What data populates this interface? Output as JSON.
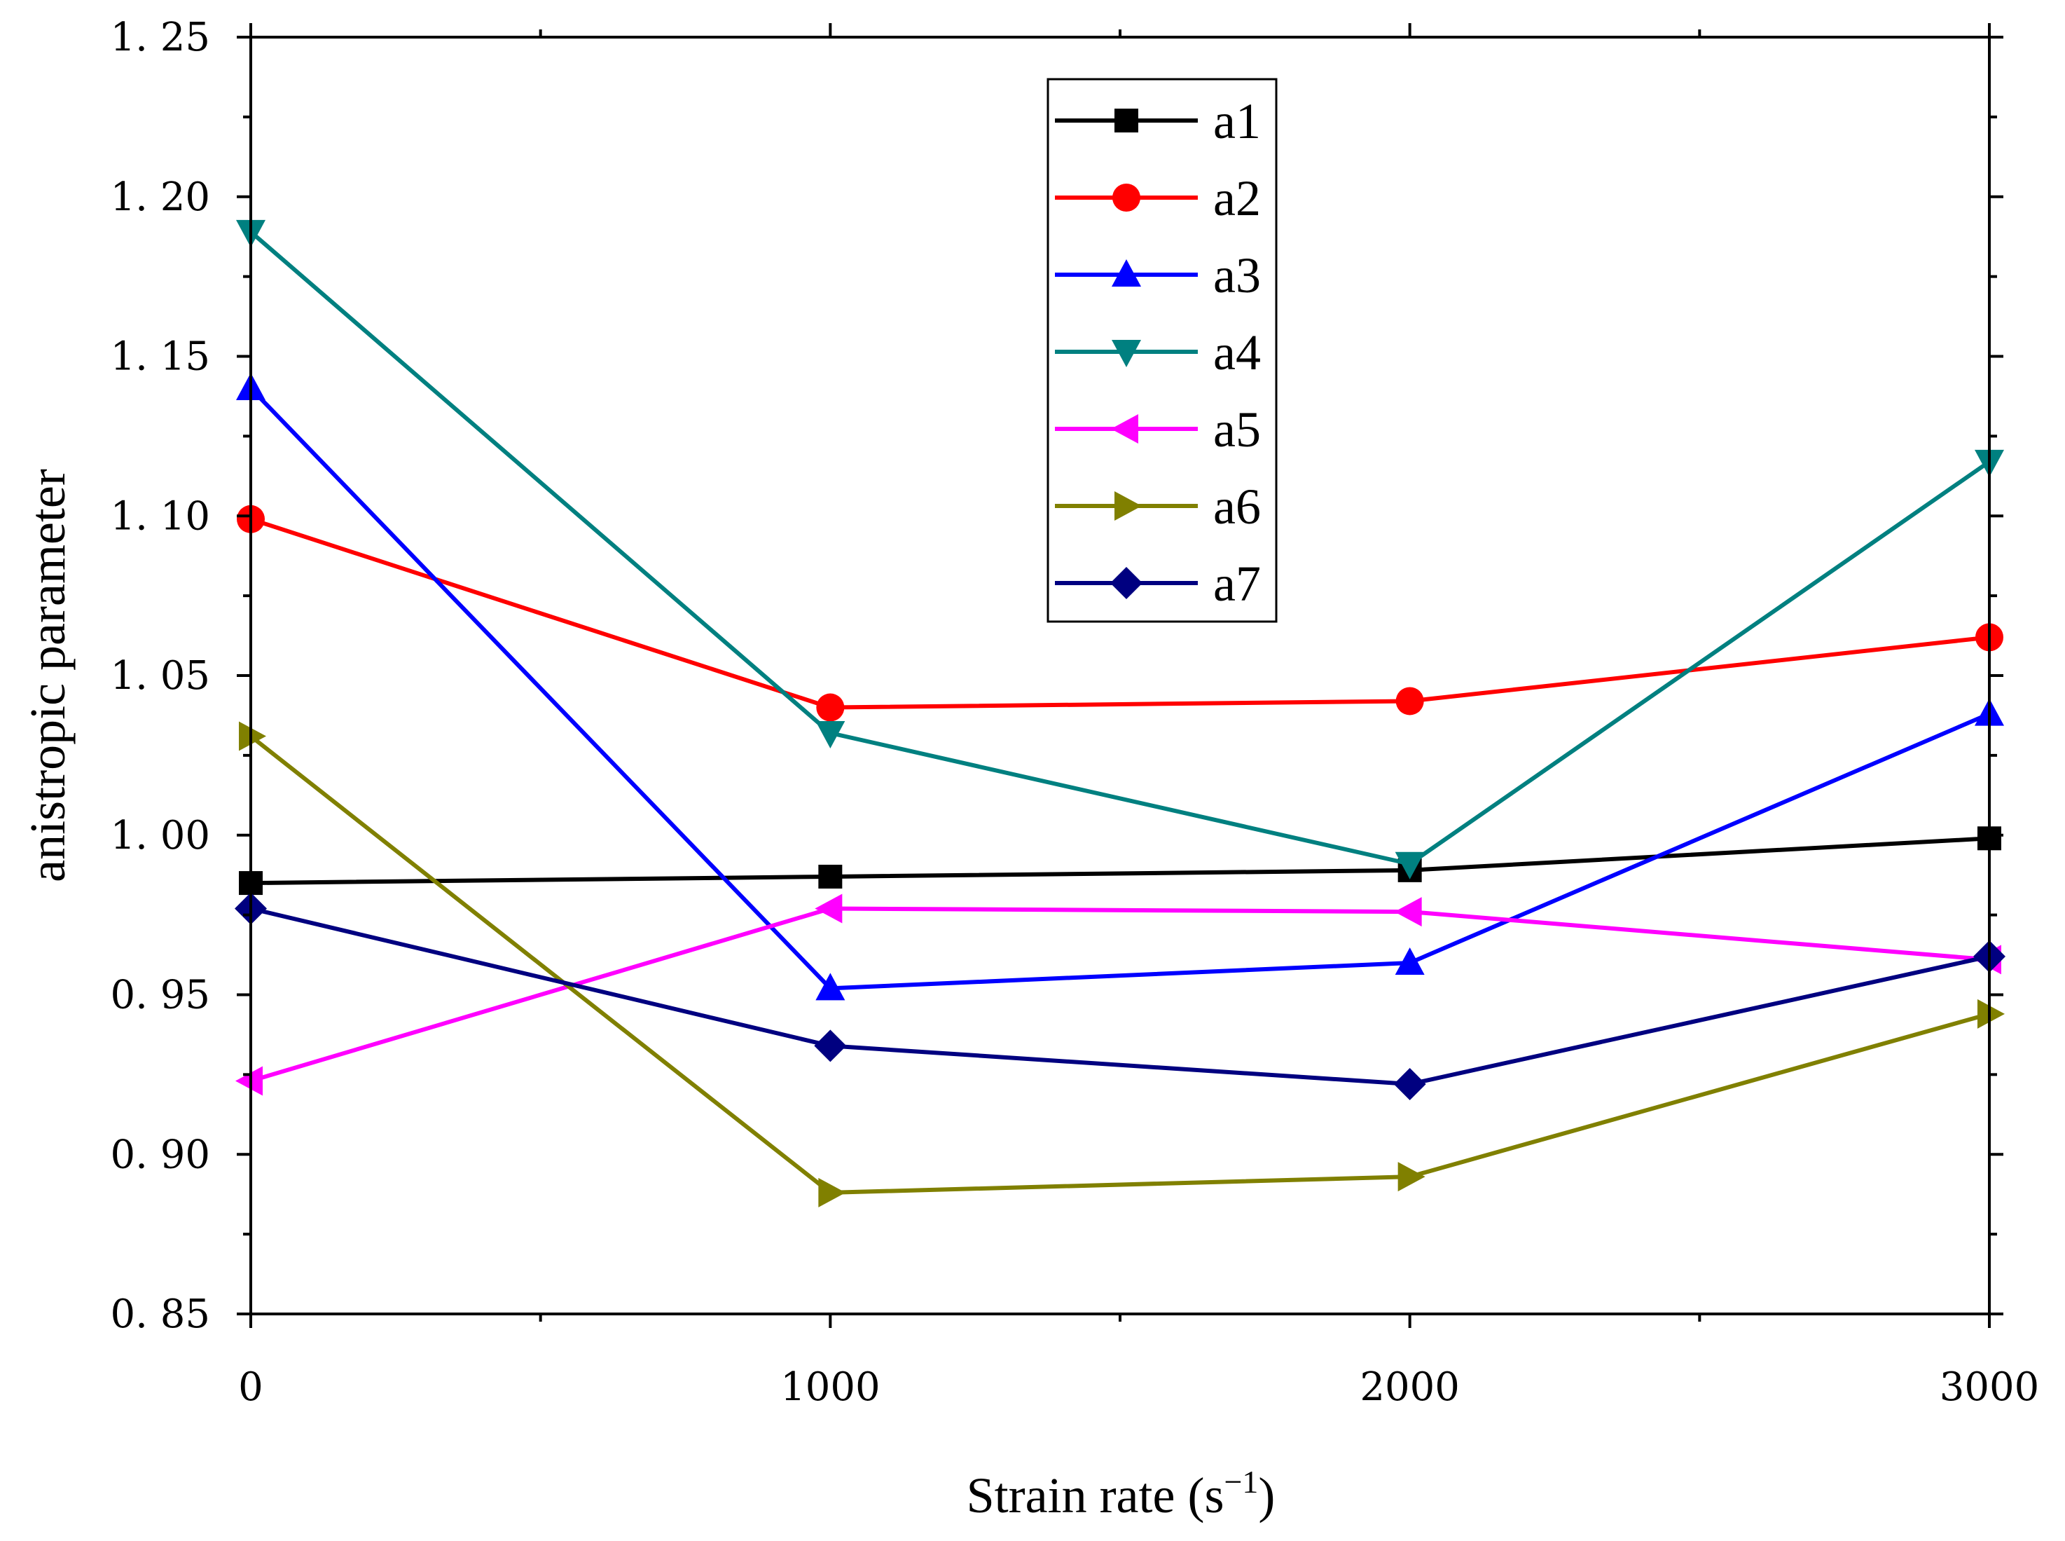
{
  "chart_data": {
    "type": "line",
    "title": "",
    "xlabel": "Strain rate (s",
    "xlabel_sup": "−1",
    "xlabel_close": ")",
    "ylabel": "anistropic parameter",
    "x": [
      0,
      1000,
      2000,
      3000
    ],
    "xlim": [
      0,
      3000
    ],
    "ylim": [
      0.85,
      1.25
    ],
    "xticks": [
      0,
      1000,
      2000,
      3000
    ],
    "xtick_labels": [
      "0",
      "1000",
      "2000",
      "3000"
    ],
    "yticks": [
      0.85,
      0.9,
      0.95,
      1.0,
      1.05,
      1.1,
      1.15,
      1.2,
      1.25
    ],
    "ytick_labels": [
      "0. 85",
      "0. 90",
      "0. 95",
      "1. 00",
      "1. 05",
      "1. 10",
      "1. 15",
      "1. 20",
      "1. 25"
    ],
    "grid": false,
    "legend_position": "top-center",
    "series": [
      {
        "name": "a1",
        "color": "#000000",
        "marker": "square",
        "values": [
          0.985,
          0.987,
          0.989,
          0.999
        ]
      },
      {
        "name": "a2",
        "color": "#ff0000",
        "marker": "circle",
        "values": [
          1.099,
          1.04,
          1.042,
          1.062
        ]
      },
      {
        "name": "a3",
        "color": "#0000ff",
        "marker": "triangle-up",
        "values": [
          1.14,
          0.952,
          0.96,
          1.038
        ]
      },
      {
        "name": "a4",
        "color": "#008080",
        "marker": "triangle-down",
        "values": [
          1.189,
          1.032,
          0.991,
          1.117
        ]
      },
      {
        "name": "a5",
        "color": "#ff00ff",
        "marker": "triangle-left",
        "values": [
          0.923,
          0.977,
          0.976,
          0.961
        ]
      },
      {
        "name": "a6",
        "color": "#808000",
        "marker": "triangle-right",
        "values": [
          1.031,
          0.888,
          0.893,
          0.944
        ]
      },
      {
        "name": "a7",
        "color": "#000080",
        "marker": "diamond",
        "values": [
          0.977,
          0.934,
          0.922,
          0.962
        ]
      }
    ]
  }
}
